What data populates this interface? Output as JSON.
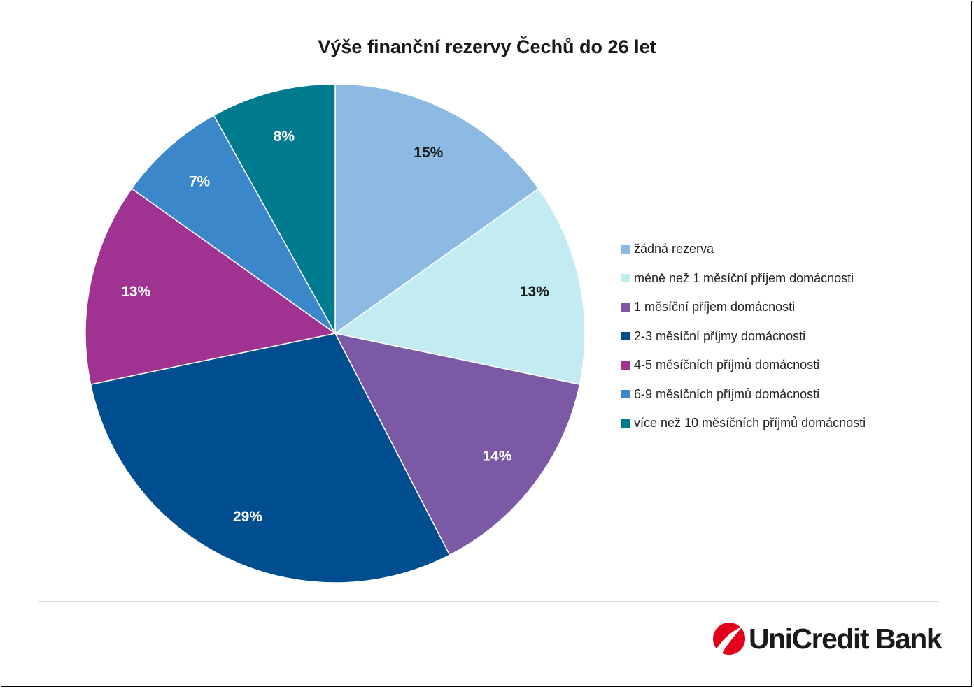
{
  "chart_data": {
    "type": "pie",
    "title": "Výše finanční rezervy Čechů do 26 let",
    "categories": [
      "žádná rezerva",
      "méně než 1 měsíční příjem domácnosti",
      "1 měsíční příjem domácnosti",
      "2-3 měsíční příjmy domácnosti",
      "4-5 měsíčních příjmů domácnosti",
      "6-9 měsíčních příjmů domácnosti",
      "více než 10 měsíčních příjmů domácnosti"
    ],
    "values": [
      15,
      13,
      14,
      29,
      13,
      7,
      8
    ],
    "data_labels": [
      "15%",
      "13%",
      "14%",
      "29%",
      "13%",
      "7%",
      "8%"
    ],
    "colors": [
      "#8DBAE2",
      "#C3EBF2",
      "#7B59A4",
      "#004D8F",
      "#A03291",
      "#3B87C9",
      "#007A8E"
    ],
    "label_colors": [
      "#1a1a1a",
      "#1a1a1a",
      "#ffffff",
      "#ffffff",
      "#ffffff",
      "#ffffff",
      "#ffffff"
    ],
    "start": "12 o'clock",
    "direction": "clockwise",
    "legend_position": "right"
  },
  "brand": {
    "name": "UniCredit Bank",
    "logo_color": "#E2001A",
    "logo_icon": "unicredit-logo-icon"
  }
}
